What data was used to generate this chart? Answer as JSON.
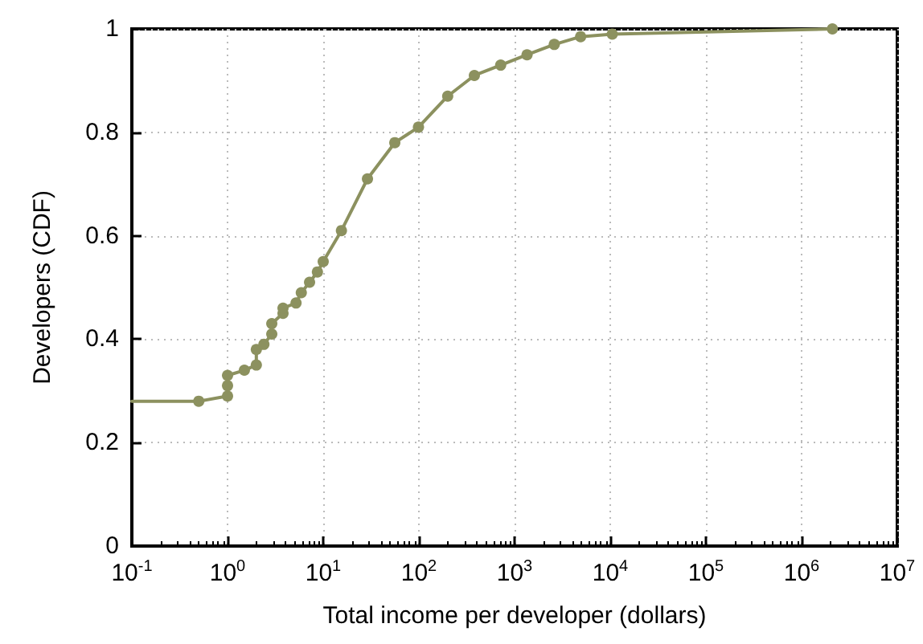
{
  "chart_data": {
    "type": "line",
    "xlabel": "Total income per developer (dollars)",
    "ylabel": "Developers (CDF)",
    "log": "x",
    "grid": true,
    "marker": "circle",
    "line_style": "solid",
    "xlim": [
      0.1,
      10000000
    ],
    "ylim": [
      0,
      1
    ],
    "xticks": [
      {
        "value": 0.1,
        "label": "10$^{-1}$"
      },
      {
        "value": 1,
        "label": "10$^{0}$"
      },
      {
        "value": 10,
        "label": "10$^{1}$"
      },
      {
        "value": 100,
        "label": "10$^{2}$"
      },
      {
        "value": 1000,
        "label": "10$^{3}$"
      },
      {
        "value": 10000,
        "label": "10$^{4}$"
      },
      {
        "value": 100000,
        "label": "10$^{5}$"
      },
      {
        "value": 1000000,
        "label": "10$^{6}$"
      },
      {
        "value": 10000000,
        "label": "10$^{7}$"
      }
    ],
    "yticks": [
      0,
      0.2,
      0.4,
      0.6,
      0.8,
      1
    ],
    "series": [
      {
        "color": "#8c915f",
        "x": [
          0.1,
          0.5,
          1,
          1,
          1,
          1.5,
          2,
          2,
          2.4,
          2.9,
          2.9,
          3.8,
          3.8,
          5.2,
          5.9,
          7.2,
          8.7,
          10,
          15.5,
          29,
          56,
          99,
          200,
          380,
          716,
          1350,
          2600,
          4900,
          10500,
          2100000
        ],
        "values": [
          0.28,
          0.28,
          0.29,
          0.31,
          0.33,
          0.34,
          0.35,
          0.38,
          0.39,
          0.41,
          0.43,
          0.45,
          0.46,
          0.47,
          0.49,
          0.51,
          0.53,
          0.55,
          0.61,
          0.71,
          0.78,
          0.81,
          0.87,
          0.91,
          0.93,
          0.95,
          0.97,
          0.985,
          0.99,
          1
        ]
      }
    ]
  }
}
